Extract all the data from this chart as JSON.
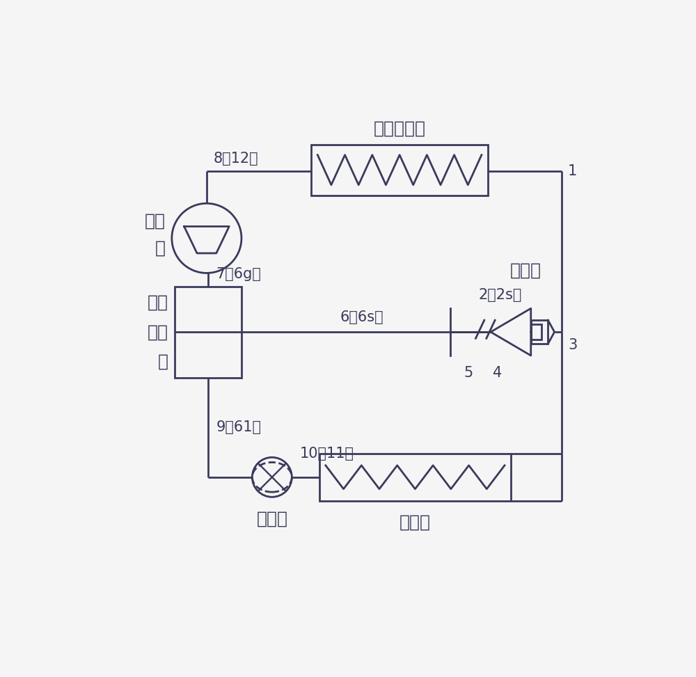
{
  "bg_color": "#f5f5f5",
  "line_color": "#3a3a5c",
  "text_color": "#3a3a5c",
  "title_gas_cooler": "气体冷却器",
  "title_ejector": "喷射器",
  "title_expansion": "膨胀阀",
  "title_evaporator": "蒸发器",
  "comp_label_1": "压",
  "comp_label_2": "缩",
  "comp_label_3": "机",
  "sep_label_1": "气",
  "sep_label_2": "液",
  "sep_label_3": "分",
  "sep_label_4": "离",
  "sep_label_5": "器",
  "label_1": "1",
  "label_2": "2（2s）",
  "label_3": "3",
  "label_4": "4",
  "label_5": "5",
  "label_6": "6（6s）",
  "label_7": "7（6g）",
  "label_8": "8（12）",
  "label_9": "9（61）",
  "label_10": "10（11）"
}
